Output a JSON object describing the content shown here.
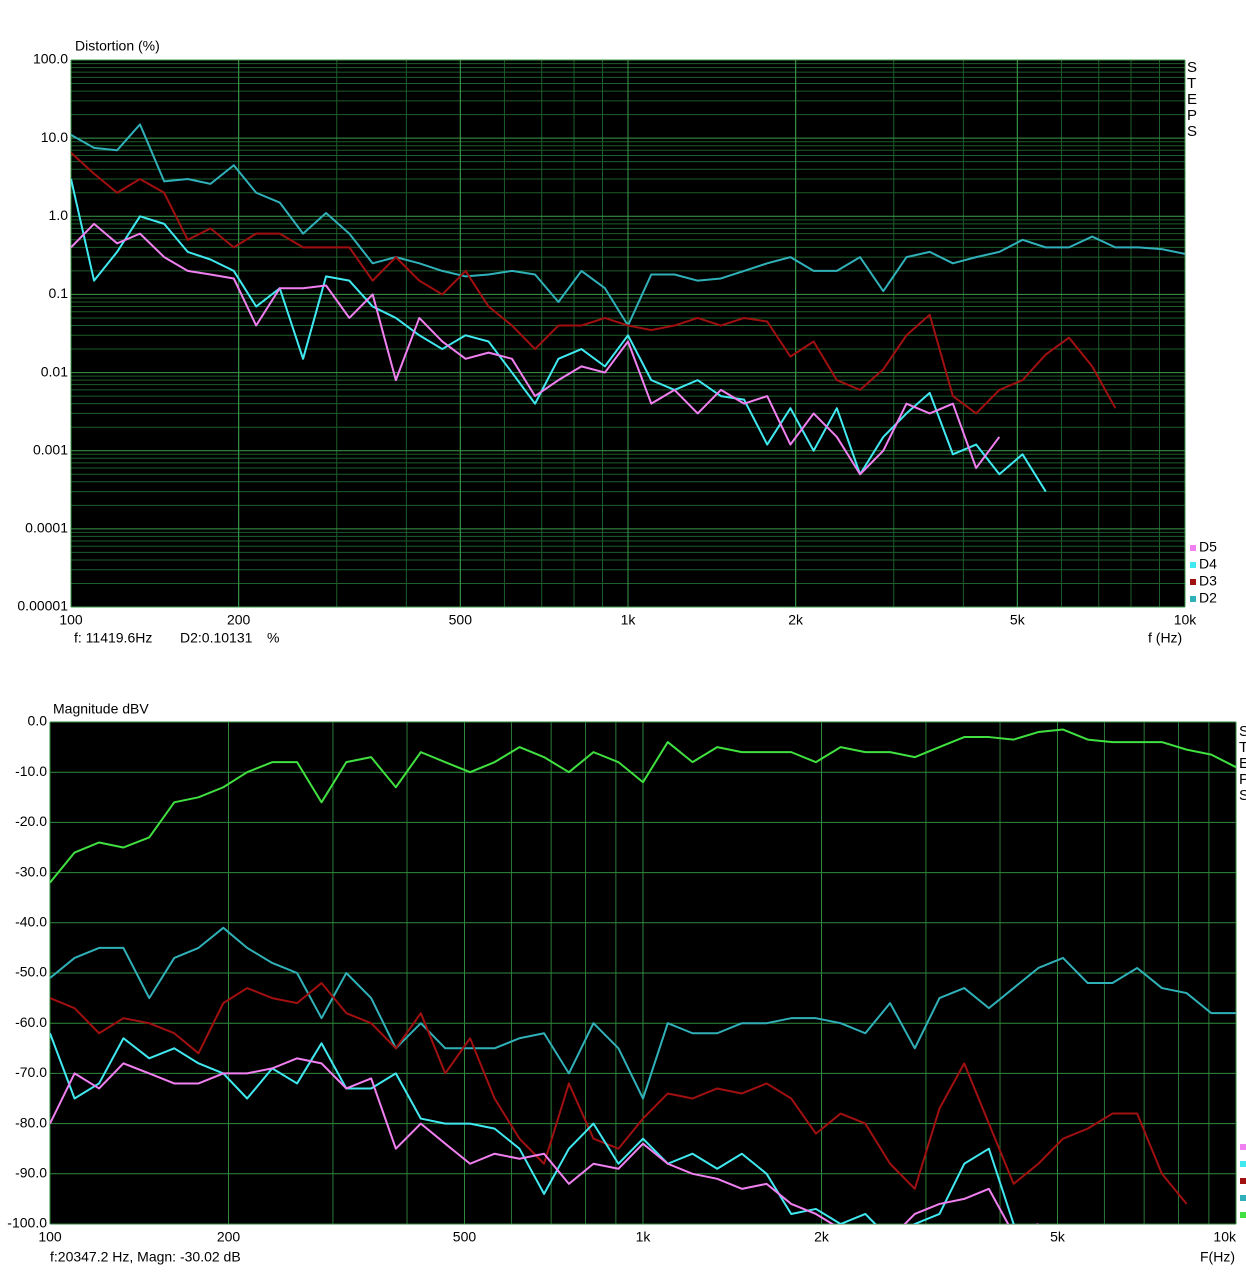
{
  "chart_data": [
    {
      "type": "line",
      "title": "Distortion (%)",
      "xlabel": "f (Hz)",
      "side_label": "STEPS",
      "status": [
        "f: 11419.6Hz",
        "D2:0.10131",
        "%"
      ],
      "xscale": "log",
      "yscale": "log",
      "grid": true,
      "xlim": [
        100,
        10000
      ],
      "ylim": [
        1e-05,
        100
      ],
      "xticks": [
        100,
        200,
        500,
        {
          "value": 1000,
          "label": "1k"
        },
        {
          "value": 2000,
          "label": "2k"
        },
        {
          "value": 5000,
          "label": "5k"
        },
        {
          "value": 10000,
          "label": "10k"
        }
      ],
      "yticks": [
        {
          "value": 100,
          "label": "100.0"
        },
        {
          "value": 10,
          "label": "10.0"
        },
        {
          "value": 1,
          "label": "1.0"
        },
        0.1,
        0.01,
        0.001,
        0.0001,
        1e-05
      ],
      "x": [
        100,
        110,
        121,
        133,
        147,
        162,
        178,
        196,
        215,
        237,
        261,
        287,
        316,
        348,
        383,
        422,
        464,
        511,
        562,
        619,
        681,
        750,
        825,
        909,
        1000,
        1101,
        1212,
        1334,
        1468,
        1616,
        1778,
        1957,
        2154,
        2371,
        2610,
        2873,
        3162,
        3481,
        3831,
        4217,
        4642,
        5109,
        5623,
        6190,
        6813,
        7499,
        8254,
        9085,
        10000
      ],
      "series": [
        {
          "name": "D5",
          "color": "#f080f0",
          "values": [
            0.4,
            0.8,
            0.45,
            0.6,
            0.3,
            0.2,
            0.18,
            0.16,
            0.04,
            0.12,
            0.12,
            0.13,
            0.05,
            0.1,
            0.008,
            0.05,
            0.025,
            0.015,
            0.018,
            0.015,
            0.005,
            0.008,
            0.012,
            0.01,
            0.025,
            0.004,
            0.006,
            0.003,
            0.006,
            0.004,
            0.005,
            0.0012,
            0.003,
            0.0015,
            0.0005,
            0.001,
            0.004,
            0.003,
            0.004,
            0.0006,
            0.0015,
            null,
            null,
            null,
            null,
            null,
            null,
            null,
            null
          ]
        },
        {
          "name": "D4",
          "color": "#40e8f0",
          "values": [
            3,
            0.15,
            0.35,
            1,
            0.8,
            0.35,
            0.28,
            0.2,
            0.07,
            0.12,
            0.015,
            0.17,
            0.15,
            0.07,
            0.05,
            0.03,
            0.02,
            0.03,
            0.025,
            0.01,
            0.004,
            0.015,
            0.02,
            0.012,
            0.03,
            0.008,
            0.006,
            0.008,
            0.005,
            0.0045,
            0.0012,
            0.0035,
            0.001,
            0.0035,
            0.0005,
            0.0015,
            0.003,
            0.0055,
            0.0009,
            0.0012,
            0.0005,
            0.0009,
            0.0003,
            null,
            null,
            null,
            null,
            null,
            null
          ]
        },
        {
          "name": "D3",
          "color": "#a01010",
          "values": [
            6.5,
            3.5,
            2,
            3,
            2,
            0.5,
            0.7,
            0.4,
            0.6,
            0.6,
            0.4,
            0.4,
            0.4,
            0.15,
            0.3,
            0.15,
            0.1,
            0.2,
            0.07,
            0.04,
            0.02,
            0.04,
            0.04,
            0.05,
            0.04,
            0.035,
            0.04,
            0.05,
            0.04,
            0.05,
            0.045,
            0.016,
            0.025,
            0.008,
            0.006,
            0.011,
            0.03,
            0.055,
            0.005,
            0.003,
            0.006,
            0.008,
            0.017,
            0.028,
            0.012,
            0.0035,
            null,
            null,
            null
          ]
        },
        {
          "name": "D2",
          "color": "#30b0b8",
          "values": [
            11,
            7.5,
            7,
            15,
            2.8,
            3,
            2.6,
            4.5,
            2,
            1.5,
            0.6,
            1.1,
            0.6,
            0.25,
            0.3,
            0.25,
            0.2,
            0.17,
            0.18,
            0.2,
            0.18,
            0.08,
            0.2,
            0.12,
            0.04,
            0.18,
            0.18,
            0.15,
            0.16,
            0.2,
            0.25,
            0.3,
            0.2,
            0.2,
            0.3,
            0.11,
            0.3,
            0.35,
            0.25,
            0.3,
            0.35,
            0.5,
            0.4,
            0.4,
            0.55,
            0.4,
            0.4,
            0.38,
            0.33
          ]
        }
      ]
    },
    {
      "type": "line",
      "title": "Magnitude dBV",
      "xlabel": "F(Hz)",
      "side_label": "STEPS",
      "status": [
        "f:20347.2 Hz, Magn: -30.02 dB"
      ],
      "xscale": "log",
      "yscale": "linear",
      "grid": true,
      "xlim": [
        100,
        10000
      ],
      "ylim": [
        -100,
        0
      ],
      "xticks": [
        100,
        200,
        500,
        {
          "value": 1000,
          "label": "1k"
        },
        {
          "value": 2000,
          "label": "2k"
        },
        {
          "value": 5000,
          "label": "5k"
        },
        {
          "value": 10000,
          "label": "10k"
        }
      ],
      "yticks": [
        {
          "value": 0,
          "label": "0.0"
        },
        {
          "value": -10,
          "label": "-10.0"
        },
        {
          "value": -20,
          "label": "-20.0"
        },
        {
          "value": -30,
          "label": "-30.0"
        },
        {
          "value": -40,
          "label": "-40.0"
        },
        {
          "value": -50,
          "label": "-50.0"
        },
        {
          "value": -60,
          "label": "-60.0"
        },
        {
          "value": -70,
          "label": "-70.0"
        },
        {
          "value": -80,
          "label": "-80.0"
        },
        {
          "value": -90,
          "label": "-90.0"
        },
        {
          "value": -100,
          "label": "-100.0"
        }
      ],
      "x": [
        100,
        110,
        121,
        133,
        147,
        162,
        178,
        196,
        215,
        237,
        261,
        287,
        316,
        348,
        383,
        422,
        464,
        511,
        562,
        619,
        681,
        750,
        825,
        909,
        1000,
        1101,
        1212,
        1334,
        1468,
        1616,
        1778,
        1957,
        2154,
        2371,
        2610,
        2873,
        3162,
        3481,
        3831,
        4217,
        4642,
        5109,
        5623,
        6190,
        6813,
        7499,
        8254,
        9085,
        10000
      ],
      "series": [
        {
          "color": "#f080f0",
          "values": [
            -80,
            -70,
            -73,
            -68,
            -70,
            -72,
            -72,
            -70,
            -70,
            -69,
            -67,
            -68,
            -73,
            -71,
            -85,
            -80,
            -84,
            -88,
            -86,
            -87,
            -86,
            -92,
            -88,
            -89,
            -84,
            -88,
            -90,
            -91,
            -93,
            -92,
            -96,
            -98,
            -101,
            -102,
            -103,
            -98,
            -96,
            -95,
            -93,
            -102,
            -100,
            null,
            null,
            null,
            null,
            null,
            null,
            null,
            null
          ]
        },
        {
          "color": "#40e8f0",
          "values": [
            -62,
            -75,
            -72,
            -63,
            -67,
            -65,
            -68,
            -70,
            -75,
            -69,
            -72,
            -64,
            -73,
            -73,
            -70,
            -79,
            -80,
            -80,
            -81,
            -85,
            -94,
            -85,
            -80,
            -88,
            -83,
            -88,
            -86,
            -89,
            -86,
            -90,
            -98,
            -97,
            -100,
            -98,
            -103,
            -100,
            -98,
            -88,
            -85,
            -100,
            -104,
            null,
            null,
            null,
            null,
            null,
            null,
            null,
            null
          ]
        },
        {
          "color": "#a01010",
          "values": [
            -55,
            -57,
            -62,
            -59,
            -60,
            -62,
            -66,
            -56,
            -53,
            -55,
            -56,
            -52,
            -58,
            -60,
            -65,
            -58,
            -70,
            -63,
            -75,
            -83,
            -88,
            -72,
            -83,
            -85,
            -79,
            -74,
            -75,
            -73,
            -74,
            -72,
            -75,
            -82,
            -78,
            -80,
            -88,
            -93,
            -77,
            -68,
            -80,
            -92,
            -88,
            -83,
            -81,
            -78,
            -78,
            -90,
            -96,
            null,
            null
          ]
        },
        {
          "color": "#30b0b8",
          "values": [
            -51,
            -47,
            -45,
            -45,
            -55,
            -47,
            -45,
            -41,
            -45,
            -48,
            -50,
            -59,
            -50,
            -55,
            -65,
            -60,
            -65,
            -65,
            -65,
            -63,
            -62,
            -70,
            -60,
            -65,
            -75,
            -60,
            -62,
            -62,
            -60,
            -60,
            -59,
            -59,
            -60,
            -62,
            -56,
            -65,
            -55,
            -53,
            -57,
            -53,
            -49,
            -47,
            -52,
            -52,
            -49,
            -53,
            -54,
            -58,
            -58
          ]
        },
        {
          "color": "#40e040",
          "values": [
            -32,
            -26,
            -24,
            -25,
            -23,
            -16,
            -15,
            -13,
            -10,
            -8,
            -8,
            -16,
            -8,
            -7,
            -13,
            -6,
            -8,
            -10,
            -8,
            -5,
            -7,
            -10,
            -6,
            -8,
            -12,
            -4,
            -8,
            -5,
            -6,
            -6,
            -6,
            -8,
            -5,
            -6,
            -6,
            -7,
            -5,
            -3,
            -3,
            -3.5,
            -2,
            -1.5,
            -3.5,
            -4,
            -4,
            -4,
            -5.5,
            -6.5,
            -9
          ]
        }
      ]
    }
  ]
}
